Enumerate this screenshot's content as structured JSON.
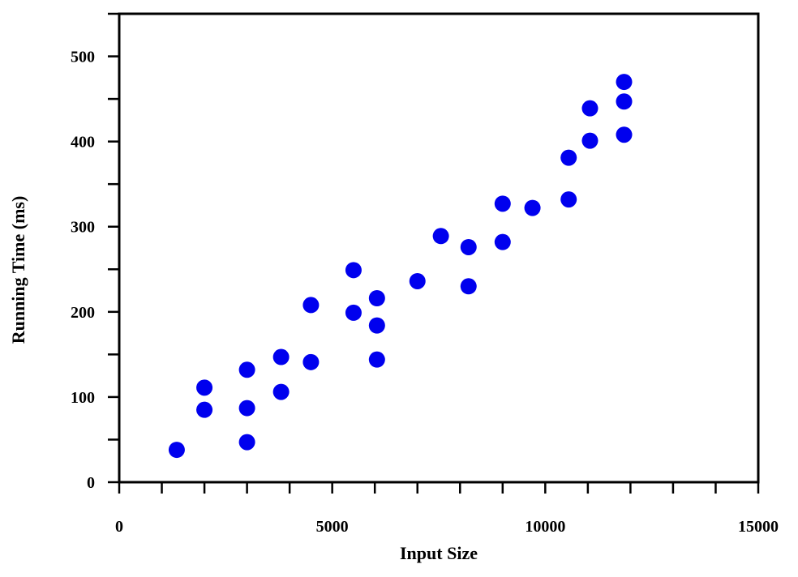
{
  "chart_data": {
    "type": "scatter",
    "title": "",
    "xlabel": "Input Size",
    "ylabel": "Running Time (ms)",
    "xlim": [
      0,
      15000
    ],
    "ylim": [
      0,
      550
    ],
    "x_ticks": [
      0,
      5000,
      10000,
      15000
    ],
    "x_tick_labels": [
      "0",
      "5000",
      "10000",
      "15000"
    ],
    "x_minor_step": 1000,
    "y_ticks": [
      0,
      100,
      200,
      300,
      400,
      500
    ],
    "y_tick_labels": [
      "0",
      "100",
      "200",
      "300",
      "400",
      "500"
    ],
    "y_minor_step": 50,
    "grid": false,
    "legend": "none",
    "marker_color": "#0000ee",
    "series": [
      {
        "x": [
          1350,
          2000,
          2000,
          3000,
          3000,
          3000,
          3800,
          3800,
          4500,
          4500,
          5500,
          5500,
          6050,
          6050,
          6050,
          7000,
          7550,
          8200,
          8200,
          9000,
          9000,
          9700,
          10550,
          10550,
          11050,
          11050,
          11850,
          11850,
          11850
        ],
        "y": [
          38,
          85,
          111,
          47,
          87,
          132,
          106,
          147,
          141,
          208,
          199,
          249,
          144,
          184,
          216,
          236,
          289,
          230,
          276,
          282,
          327,
          322,
          332,
          381,
          401,
          439,
          408,
          447,
          470
        ]
      }
    ]
  }
}
